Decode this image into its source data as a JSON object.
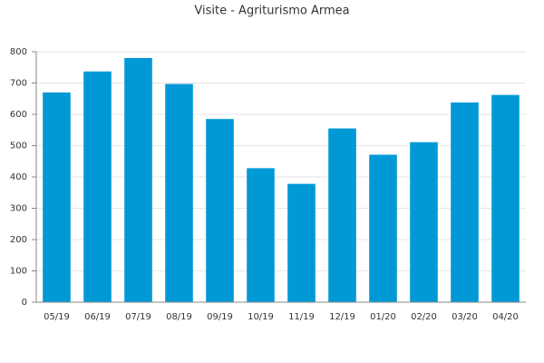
{
  "chart_data": {
    "type": "bar",
    "title": "Visite - Agriturismo Armea",
    "categories": [
      "05/19",
      "06/19",
      "07/19",
      "08/19",
      "09/19",
      "10/19",
      "11/19",
      "12/19",
      "01/20",
      "02/20",
      "03/20",
      "04/20"
    ],
    "values": [
      670,
      737,
      780,
      697,
      585,
      428,
      378,
      555,
      471,
      511,
      638,
      662
    ],
    "color": "#0099d6",
    "ylim": [
      0,
      800
    ],
    "yticks": [
      0,
      100,
      200,
      300,
      400,
      500,
      600,
      700,
      800
    ],
    "grid": true
  }
}
